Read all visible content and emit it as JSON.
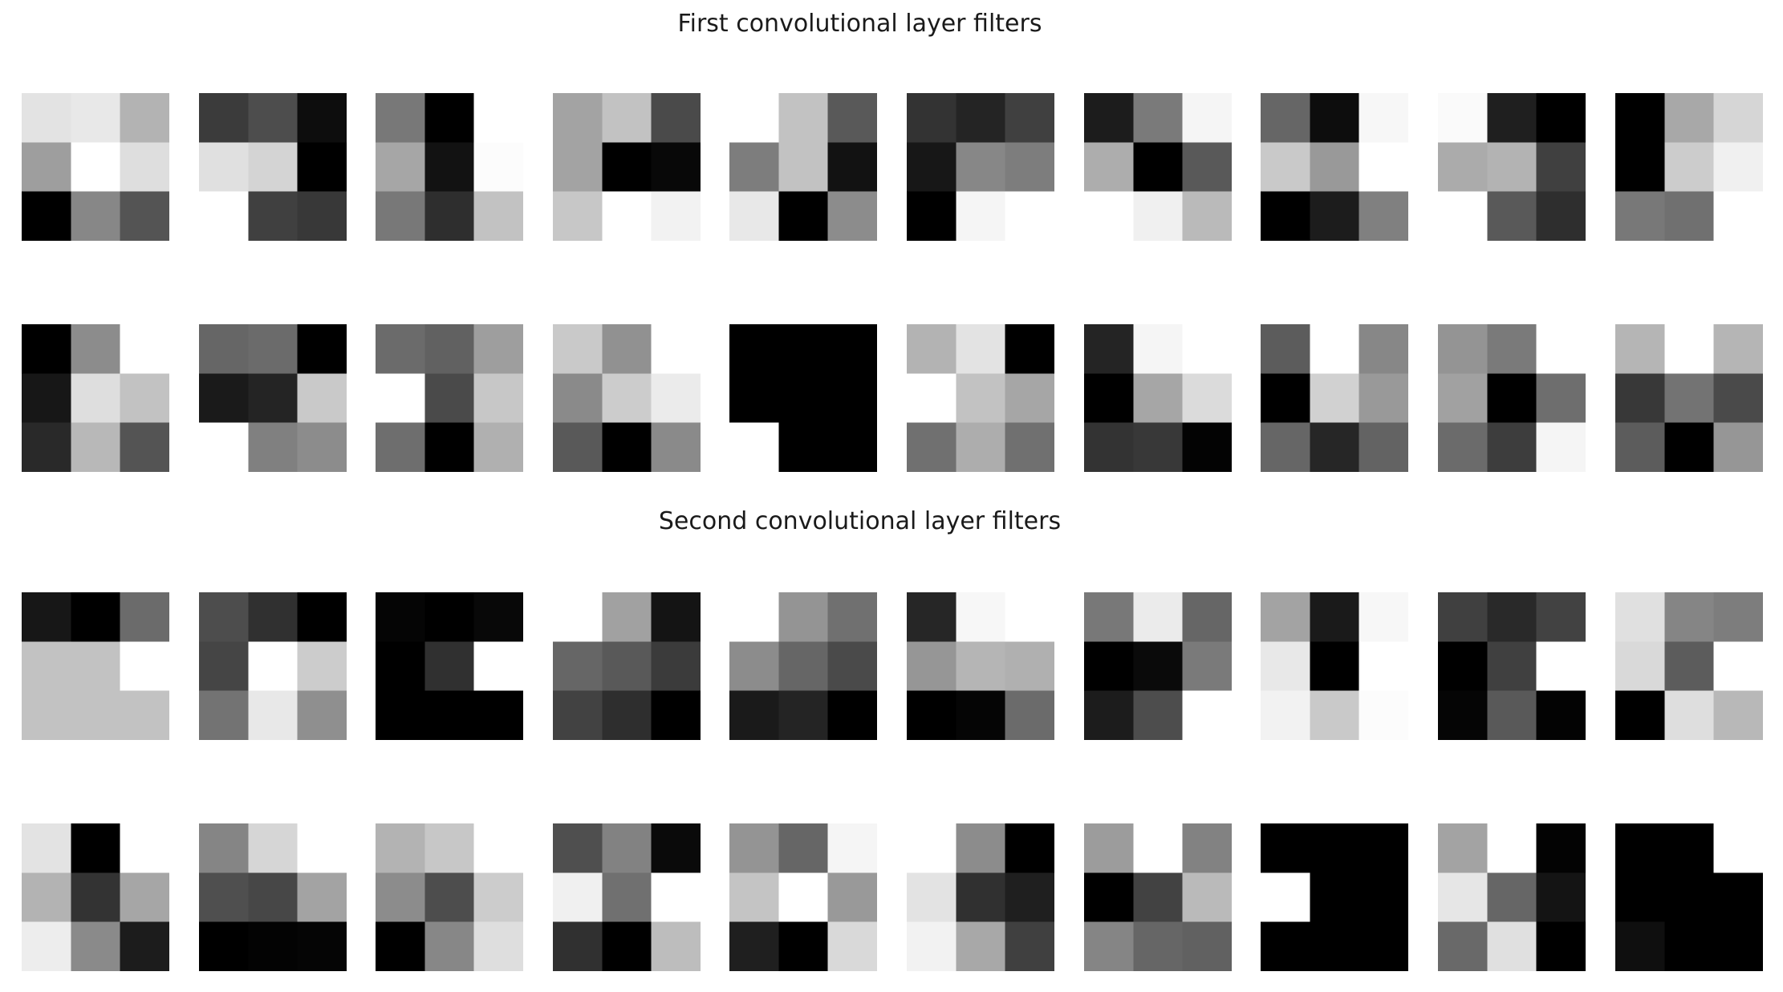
{
  "figure": {
    "title_first": "First convolutional layer filters",
    "title_second": "Second convolutional layer filters"
  },
  "chart_data": [
    {
      "type": "heatmap",
      "title": "First convolutional layer filters",
      "colormap": "gray",
      "value_range": [
        0,
        1
      ],
      "kernel_size": [
        3,
        3
      ],
      "rows": 2,
      "cols": 10,
      "filters": [
        [
          [
            0.89,
            0.91,
            0.7
          ],
          [
            0.62,
            1.0,
            0.87
          ],
          [
            0.0,
            0.53,
            0.33
          ]
        ],
        [
          [
            0.23,
            0.3,
            0.05
          ],
          [
            0.88,
            0.83,
            0.0
          ],
          [
            1.0,
            0.25,
            0.22
          ]
        ],
        [
          [
            0.47,
            0.0,
            1.0
          ],
          [
            0.65,
            0.07,
            0.99
          ],
          [
            0.47,
            0.18,
            0.76
          ]
        ],
        [
          [
            0.64,
            0.76,
            0.29
          ],
          [
            0.64,
            0.0,
            0.03
          ],
          [
            0.78,
            1.0,
            0.95
          ]
        ],
        [
          [
            1.0,
            0.76,
            0.35
          ],
          [
            0.49,
            0.76,
            0.07
          ],
          [
            0.91,
            0.0,
            0.55
          ]
        ],
        [
          [
            0.2,
            0.14,
            0.25
          ],
          [
            0.09,
            0.53,
            0.49
          ],
          [
            0.0,
            0.96,
            1.0
          ]
        ],
        [
          [
            0.11,
            0.48,
            0.96
          ],
          [
            0.68,
            0.0,
            0.35
          ],
          [
            1.0,
            0.94,
            0.73
          ]
        ],
        [
          [
            0.4,
            0.05,
            0.97
          ],
          [
            0.79,
            0.6,
            1.0
          ],
          [
            0.0,
            0.11,
            0.5
          ]
        ],
        [
          [
            0.98,
            0.12,
            0.0
          ],
          [
            0.67,
            0.7,
            0.25
          ],
          [
            1.0,
            0.35,
            0.18
          ]
        ],
        [
          [
            0.0,
            0.66,
            0.84
          ],
          [
            0.0,
            0.8,
            0.94
          ],
          [
            0.47,
            0.44,
            1.0
          ]
        ],
        [
          [
            0.0,
            0.55,
            1.0
          ],
          [
            0.09,
            0.87,
            0.76
          ],
          [
            0.16,
            0.72,
            0.33
          ]
        ],
        [
          [
            0.4,
            0.42,
            0.0
          ],
          [
            0.1,
            0.14,
            0.79
          ],
          [
            1.0,
            0.5,
            0.55
          ]
        ],
        [
          [
            0.42,
            0.38,
            0.62
          ],
          [
            1.0,
            0.29,
            0.78
          ],
          [
            0.43,
            0.0,
            0.69
          ]
        ],
        [
          [
            0.79,
            0.57,
            1.0
          ],
          [
            0.54,
            0.8,
            0.92
          ],
          [
            0.35,
            0.0,
            0.54
          ]
        ],
        [
          [
            0.0,
            0.0,
            0.0
          ],
          [
            0.0,
            0.0,
            0.0
          ],
          [
            1.0,
            0.0,
            0.0
          ]
        ],
        [
          [
            0.7,
            0.89,
            0.0
          ],
          [
            1.0,
            0.76,
            0.65
          ],
          [
            0.44,
            0.68,
            0.44
          ]
        ],
        [
          [
            0.14,
            0.96,
            1.0
          ],
          [
            0.0,
            0.65,
            0.86
          ],
          [
            0.2,
            0.22,
            0.01
          ]
        ],
        [
          [
            0.36,
            1.0,
            0.53
          ],
          [
            0.0,
            0.82,
            0.6
          ],
          [
            0.4,
            0.15,
            0.39
          ]
        ],
        [
          [
            0.58,
            0.48,
            1.0
          ],
          [
            0.63,
            0.0,
            0.43
          ],
          [
            0.42,
            0.24,
            0.96
          ]
        ],
        [
          [
            0.71,
            1.0,
            0.71
          ],
          [
            0.22,
            0.45,
            0.29
          ],
          [
            0.36,
            0.0,
            0.59
          ]
        ]
      ]
    },
    {
      "type": "heatmap",
      "title": "Second convolutional layer filters",
      "colormap": "gray",
      "value_range": [
        0,
        1
      ],
      "kernel_size": [
        3,
        3
      ],
      "rows": 2,
      "cols": 10,
      "filters": [
        [
          [
            0.09,
            0.0,
            0.42
          ],
          [
            0.76,
            0.76,
            1.0
          ],
          [
            0.76,
            0.76,
            0.76
          ]
        ],
        [
          [
            0.3,
            0.19,
            0.0
          ],
          [
            0.27,
            1.0,
            0.8
          ],
          [
            0.45,
            0.91,
            0.56
          ]
        ],
        [
          [
            0.02,
            0.0,
            0.03
          ],
          [
            0.0,
            0.19,
            1.0
          ],
          [
            0.0,
            0.0,
            0.0
          ]
        ],
        [
          [
            1.0,
            0.63,
            0.08
          ],
          [
            0.4,
            0.35,
            0.23
          ],
          [
            0.26,
            0.18,
            0.0
          ]
        ],
        [
          [
            1.0,
            0.58,
            0.44
          ],
          [
            0.55,
            0.4,
            0.29
          ],
          [
            0.1,
            0.14,
            0.0
          ]
        ],
        [
          [
            0.15,
            0.97,
            1.0
          ],
          [
            0.59,
            0.71,
            0.69
          ],
          [
            0.0,
            0.02,
            0.42
          ]
        ],
        [
          [
            0.47,
            0.92,
            0.4
          ],
          [
            0.0,
            0.04,
            0.48
          ],
          [
            0.11,
            0.3,
            1.0
          ]
        ],
        [
          [
            0.64,
            0.1,
            0.97
          ],
          [
            0.91,
            0.0,
            1.0
          ],
          [
            0.95,
            0.79,
            0.99
          ]
        ],
        [
          [
            0.25,
            0.16,
            0.26
          ],
          [
            0.0,
            0.25,
            1.0
          ],
          [
            0.02,
            0.35,
            0.01
          ]
        ],
        [
          [
            0.88,
            0.52,
            0.49
          ],
          [
            0.85,
            0.36,
            1.0
          ],
          [
            0.0,
            0.87,
            0.72
          ]
        ],
        [
          [
            0.89,
            0.0,
            1.0
          ],
          [
            0.7,
            0.2,
            0.65
          ],
          [
            0.93,
            0.54,
            0.11
          ]
        ],
        [
          [
            0.52,
            0.84,
            1.0
          ],
          [
            0.31,
            0.28,
            0.64
          ],
          [
            0.0,
            0.01,
            0.02
          ]
        ],
        [
          [
            0.7,
            0.78,
            1.0
          ],
          [
            0.55,
            0.3,
            0.8
          ],
          [
            0.0,
            0.53,
            0.87
          ]
        ],
        [
          [
            0.31,
            0.51,
            0.04
          ],
          [
            0.94,
            0.44,
            1.0
          ],
          [
            0.19,
            0.0,
            0.74
          ]
        ],
        [
          [
            0.58,
            0.4,
            0.96
          ],
          [
            0.77,
            1.0,
            0.6
          ],
          [
            0.12,
            0.0,
            0.85
          ]
        ],
        [
          [
            1.0,
            0.55,
            0.0
          ],
          [
            0.89,
            0.19,
            0.12
          ],
          [
            0.95,
            0.66,
            0.25
          ]
        ],
        [
          [
            0.61,
            1.0,
            0.51
          ],
          [
            0.0,
            0.26,
            0.73
          ],
          [
            0.52,
            0.4,
            0.38
          ]
        ],
        [
          [
            0.0,
            0.0,
            0.0
          ],
          [
            1.0,
            0.0,
            0.0
          ],
          [
            0.0,
            0.0,
            0.0
          ]
        ],
        [
          [
            0.64,
            1.0,
            0.01
          ],
          [
            0.9,
            0.4,
            0.08
          ],
          [
            0.41,
            0.88,
            0.0
          ]
        ],
        [
          [
            0.0,
            0.0,
            1.0
          ],
          [
            0.0,
            0.0,
            0.0
          ],
          [
            0.06,
            0.0,
            0.0
          ]
        ]
      ]
    }
  ]
}
